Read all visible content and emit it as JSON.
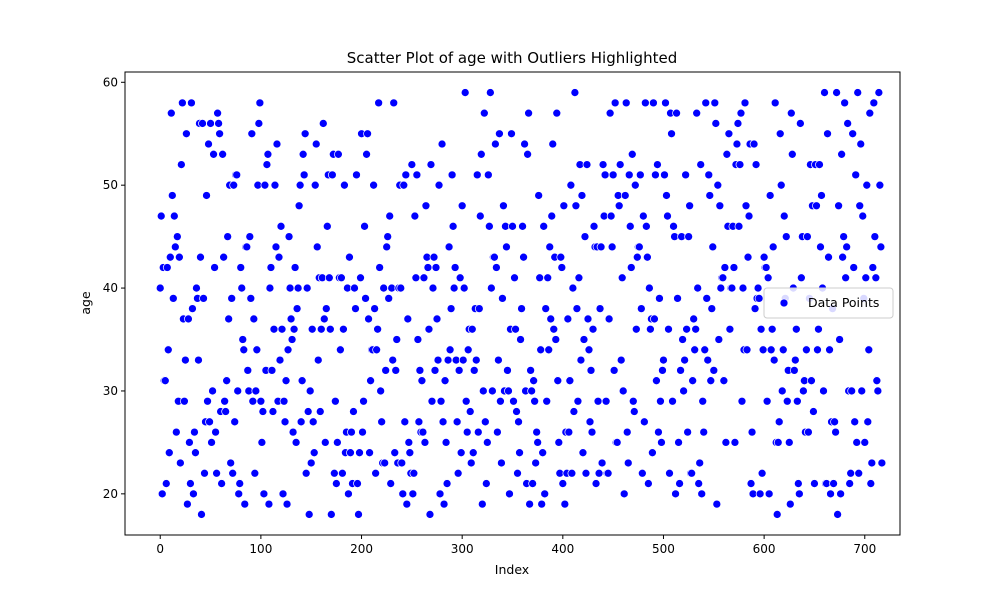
{
  "chart_data": {
    "type": "scatter",
    "title": "Scatter Plot of age with Outliers Highlighted",
    "xlabel": "Index",
    "ylabel": "age",
    "xlim": [
      -35,
      735
    ],
    "ylim": [
      16,
      61
    ],
    "xticks": [
      0,
      100,
      200,
      300,
      400,
      500,
      600,
      700
    ],
    "yticks": [
      20,
      30,
      40,
      50,
      60
    ],
    "grid": false,
    "legend_position": "center-right",
    "series": [
      {
        "name": "Data Points",
        "color": "#0000ff",
        "y": [
          40,
          47,
          20,
          42,
          31,
          31,
          21,
          42,
          34,
          24,
          43,
          57,
          49,
          39,
          47,
          44,
          26,
          45,
          29,
          43,
          23,
          52,
          58,
          37,
          29,
          33,
          55,
          19,
          37,
          25,
          21,
          58,
          38,
          20,
          26,
          24,
          40,
          39,
          33,
          56,
          43,
          18,
          56,
          39,
          22,
          27,
          49,
          29,
          54,
          27,
          56,
          25,
          30,
          53,
          42,
          26,
          22,
          57,
          56,
          55,
          28,
          21,
          53,
          43,
          29,
          28,
          31,
          45,
          37,
          50,
          23,
          39,
          22,
          50,
          27,
          51,
          51,
          30,
          20,
          21,
          42,
          40,
          35,
          34,
          19,
          44,
          44,
          32,
          30,
          45,
          39,
          55,
          29,
          37,
          22,
          30,
          34,
          50,
          56,
          58,
          29,
          25,
          28,
          20,
          50,
          32,
          52,
          53,
          19,
          40,
          42,
          32,
          28,
          36,
          50,
          44,
          54,
          29,
          43,
          33,
          46,
          36,
          20,
          29,
          27,
          31,
          19,
          34,
          45,
          40,
          37,
          35,
          26,
          36,
          42,
          25,
          38,
          40,
          48,
          50,
          27,
          31,
          53,
          51,
          55,
          22,
          40,
          28,
          18,
          30,
          23,
          36,
          27,
          24,
          50,
          54,
          44,
          33,
          41,
          28,
          36,
          41,
          56,
          37,
          25,
          38,
          46,
          51,
          41,
          36,
          18,
          51,
          53,
          22,
          29,
          21,
          25,
          53,
          41,
          34,
          41,
          22,
          36,
          50,
          24,
          26,
          40,
          20,
          43,
          24,
          26,
          21,
          28,
          40,
          38,
          51,
          21,
          18,
          24,
          41,
          55,
          26,
          29,
          46,
          39,
          53,
          55,
          37,
          24,
          31,
          34,
          34,
          50,
          38,
          22,
          34,
          36,
          58,
          42,
          30,
          27,
          23,
          40,
          23,
          32,
          44,
          45,
          39,
          47,
          21,
          40,
          33,
          58,
          24,
          32,
          35,
          23,
          40,
          50,
          40,
          23,
          20,
          50,
          27,
          51,
          19,
          37,
          25,
          24,
          22,
          52,
          20,
          22,
          47,
          41,
          51,
          35,
          27,
          32,
          26,
          31,
          26,
          41,
          25,
          48,
          43,
          42,
          36,
          18,
          52,
          29,
          40,
          43,
          32,
          42,
          37,
          33,
          50,
          20,
          29,
          54,
          27,
          19,
          31,
          25,
          21,
          33,
          44,
          34,
          38,
          51,
          46,
          40,
          42,
          33,
          27,
          22,
          32,
          41,
          24,
          48,
          33,
          40,
          59,
          29,
          26,
          34,
          36,
          28,
          23,
          36,
          24,
          32,
          38,
          33,
          51,
          26,
          38,
          47,
          53,
          19,
          30,
          57,
          27,
          21,
          25,
          51,
          46,
          59,
          40,
          30,
          43,
          43,
          54,
          42,
          26,
          33,
          55,
          29,
          23,
          39,
          48,
          30,
          46,
          44,
          32,
          30,
          20,
          36,
          55,
          46,
          29,
          41,
          36,
          28,
          22,
          27,
          24,
          35,
          38,
          46,
          43,
          54,
          30,
          21,
          53,
          57,
          19,
          32,
          30,
          21,
          31,
          29,
          23,
          26,
          25,
          49,
          41,
          34,
          19,
          24,
          46,
          20,
          38,
          29,
          41,
          34,
          44,
          37,
          47,
          54,
          36,
          43,
          35,
          57,
          31,
          25,
          22,
          43,
          42,
          21,
          48,
          19,
          26,
          22,
          37,
          26,
          31,
          50,
          22,
          40,
          28,
          59,
          48,
          38,
          29,
          41,
          52,
          33,
          49,
          24,
          35,
          45,
          22,
          52,
          37,
          34,
          27,
          32,
          26,
          36,
          46,
          44,
          21,
          44,
          29,
          22,
          38,
          44,
          23,
          52,
          47,
          51,
          29,
          22,
          22,
          37,
          57,
          47,
          44,
          51,
          32,
          58,
          25,
          25,
          49,
          48,
          52,
          33,
          41,
          30,
          20,
          49,
          58,
          26,
          23,
          51,
          46,
          42,
          53,
          29,
          28,
          50,
          36,
          43,
          44,
          44,
          51,
          38,
          22,
          47,
          27,
          58,
          46,
          43,
          21,
          40,
          36,
          37,
          24,
          58,
          37,
          51,
          31,
          52,
          26,
          39,
          29,
          25,
          32,
          33,
          51,
          58,
          49,
          47,
          36,
          22,
          57,
          55,
          29,
          46,
          45,
          20,
          57,
          39,
          25,
          21,
          32,
          45,
          35,
          30,
          33,
          51,
          36,
          26,
          45,
          48,
          22,
          22,
          31,
          37,
          34,
          36,
          57,
          40,
          21,
          23,
          52,
          20,
          29,
          26,
          34,
          58,
          39,
          33,
          51,
          49,
          31,
          38,
          44,
          32,
          58,
          56,
          19,
          50,
          35,
          48,
          40,
          41,
          41,
          31,
          42,
          25,
          53,
          46,
          55,
          36,
          40,
          40,
          46,
          42,
          25,
          52,
          54,
          56,
          46,
          52,
          57,
          29,
          40,
          34,
          58,
          48,
          34,
          43,
          47,
          54,
          21,
          26,
          20,
          54,
          38,
          52,
          39,
          40,
          39,
          20,
          36,
          22,
          34,
          43,
          42,
          42,
          29,
          41,
          20,
          49,
          34,
          36,
          44,
          33,
          58,
          25,
          18,
          25,
          27,
          55,
          50,
          30,
          34,
          47,
          39,
          45,
          29,
          32,
          25,
          19,
          57,
          53,
          40,
          32,
          33,
          36,
          29,
          21,
          20,
          56,
          41,
          45,
          30,
          31,
          26,
          34,
          45,
          26,
          39,
          52,
          31,
          48,
          28,
          21,
          52,
          48,
          34,
          36,
          52,
          44,
          49,
          40,
          30,
          59,
          21,
          21,
          55,
          43,
          34,
          20,
          27,
          38,
          21,
          27,
          26,
          59,
          18,
          48,
          35,
          20,
          53,
          43,
          45,
          58,
          41,
          44,
          56,
          30,
          21,
          22,
          30,
          55,
          42,
          27,
          51,
          25,
          59,
          22,
          48,
          54,
          30,
          47,
          39,
          25,
          41,
          50,
          27,
          34,
          57,
          21,
          23,
          42,
          58,
          45,
          41,
          31,
          30,
          59,
          50,
          44,
          23
        ]
      }
    ]
  }
}
